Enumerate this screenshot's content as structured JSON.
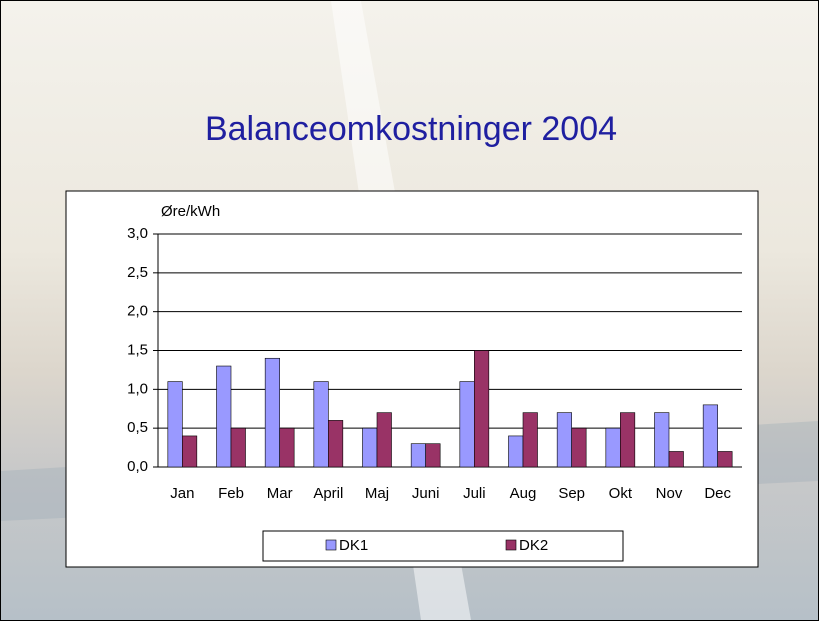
{
  "chart_data": {
    "type": "bar",
    "title": "Balanceomkostninger 2004",
    "y_label": "Øre/kWh",
    "categories": [
      "Jan",
      "Feb",
      "Mar",
      "April",
      "Maj",
      "Juni",
      "Juli",
      "Aug",
      "Sep",
      "Okt",
      "Nov",
      "Dec"
    ],
    "series": [
      {
        "name": "DK1",
        "color": "#9999ff",
        "values": [
          1.1,
          1.3,
          1.4,
          1.1,
          0.5,
          0.3,
          1.1,
          0.4,
          0.7,
          0.5,
          0.7,
          0.8
        ]
      },
      {
        "name": "DK2",
        "color": "#993366",
        "values": [
          0.4,
          0.5,
          0.5,
          0.6,
          0.7,
          0.3,
          1.5,
          0.7,
          0.5,
          0.7,
          0.2,
          0.2
        ]
      }
    ],
    "ylim": [
      0,
      3
    ],
    "yticks": [
      {
        "value": 0,
        "label": "0,0"
      },
      {
        "value": 0.5,
        "label": "0,5"
      },
      {
        "value": 1,
        "label": "1,0"
      },
      {
        "value": 1.5,
        "label": "1,5"
      },
      {
        "value": 2,
        "label": "2,0"
      },
      {
        "value": 2.5,
        "label": "2,5"
      },
      {
        "value": 3,
        "label": "3,0"
      }
    ],
    "grid": true
  }
}
